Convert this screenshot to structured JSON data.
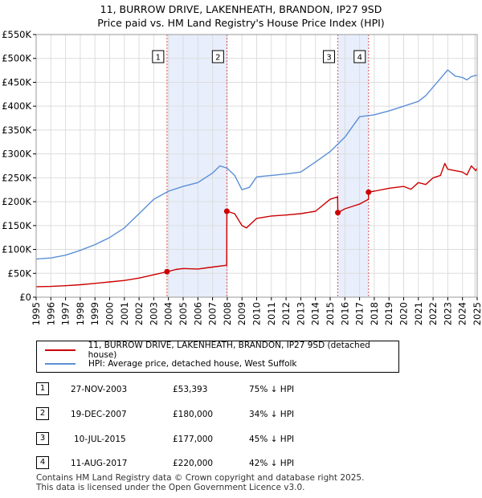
{
  "title_line1": "11, BURROW DRIVE, LAKENHEATH, BRANDON, IP27 9SD",
  "title_line2": "Price paid vs. HM Land Registry's House Price Index (HPI)",
  "legend": {
    "property_label": "11, BURROW DRIVE, LAKENHEATH, BRANDON, IP27 9SD (detached house)",
    "hpi_label": "HPI: Average price, detached house, West Suffolk"
  },
  "colors": {
    "property": "#cc0000",
    "hpi": "#5b8fd6",
    "shade": "#e8eefb",
    "grid": "#dddddd",
    "vline": "#dd5555"
  },
  "sales": [
    {
      "num": "1",
      "date": "27-NOV-2003",
      "price": "£53,393",
      "hpi": "75% ↓ HPI"
    },
    {
      "num": "2",
      "date": "19-DEC-2007",
      "price": "£180,000",
      "hpi": "34% ↓ HPI"
    },
    {
      "num": "3",
      "date": "10-JUL-2015",
      "price": "£177,000",
      "hpi": "45% ↓ HPI"
    },
    {
      "num": "4",
      "date": "11-AUG-2017",
      "price": "£220,000",
      "hpi": "42% ↓ HPI"
    }
  ],
  "footer_line1": "Contains HM Land Registry data © Crown copyright and database right 2025.",
  "footer_line2": "This data is licensed under the Open Government Licence v3.0.",
  "chart_data": {
    "type": "line",
    "title": "11, BURROW DRIVE, LAKENHEATH, BRANDON, IP27 9SD",
    "subtitle": "Price paid vs. HM Land Registry's House Price Index (HPI)",
    "xlabel": "",
    "ylabel": "",
    "xlim": [
      1995,
      2025
    ],
    "ylim": [
      0,
      550000
    ],
    "y_ticks": [
      0,
      50000,
      100000,
      150000,
      200000,
      250000,
      300000,
      350000,
      400000,
      450000,
      500000,
      550000
    ],
    "y_tick_labels": [
      "£0",
      "£50K",
      "£100K",
      "£150K",
      "£200K",
      "£250K",
      "£300K",
      "£350K",
      "£400K",
      "£450K",
      "£500K",
      "£550K"
    ],
    "x_ticks": [
      1995,
      1996,
      1997,
      1998,
      1999,
      2000,
      2001,
      2002,
      2003,
      2004,
      2005,
      2006,
      2007,
      2008,
      2009,
      2010,
      2011,
      2012,
      2013,
      2014,
      2015,
      2016,
      2017,
      2018,
      2019,
      2020,
      2021,
      2022,
      2023,
      2024,
      2025
    ],
    "x_tick_labels": [
      "1995",
      "1996",
      "1997",
      "1998",
      "1999",
      "2000",
      "2001",
      "2002",
      "2003",
      "2004",
      "2005",
      "2006",
      "2007",
      "2008",
      "2009",
      "2010",
      "2011",
      "2012",
      "2013",
      "2014",
      "2015",
      "2016",
      "2017",
      "2018",
      "2019",
      "2020",
      "2021",
      "2022",
      "2023",
      "2024",
      "2025"
    ],
    "grid": true,
    "shaded_ranges": [
      [
        2003.9,
        2007.97
      ],
      [
        2015.52,
        2017.61
      ]
    ],
    "sale_markers": [
      {
        "label": "1",
        "x": 2003.9,
        "y": 53393
      },
      {
        "label": "2",
        "x": 2007.97,
        "y": 180000
      },
      {
        "label": "3",
        "x": 2015.52,
        "y": 177000
      },
      {
        "label": "4",
        "x": 2017.61,
        "y": 220000
      }
    ],
    "series": [
      {
        "name": "11, BURROW DRIVE, LAKENHEATH, BRANDON, IP27 9SD (detached house)",
        "color": "#cc0000",
        "x": [
          1995,
          1996,
          1997,
          1998,
          1999,
          2000,
          2001,
          2002,
          2003,
          2003.9,
          2004.5,
          2005,
          2006,
          2007,
          2007.96,
          2007.97,
          2008.5,
          2009,
          2009.3,
          2010,
          2011,
          2012,
          2013,
          2014,
          2015,
          2015.51,
          2015.52,
          2016,
          2016.5,
          2017,
          2017.6,
          2017.61,
          2018,
          2019,
          2020,
          2020.5,
          2021,
          2021.5,
          2022,
          2022.5,
          2022.8,
          2023,
          2023.5,
          2024,
          2024.3,
          2024.6,
          2024.9,
          2025
        ],
        "y": [
          22000,
          22500,
          24000,
          26000,
          29000,
          32000,
          35000,
          40000,
          47000,
          53393,
          58000,
          60000,
          59000,
          63000,
          67000,
          180000,
          175000,
          150000,
          145000,
          165000,
          170000,
          172000,
          175000,
          180000,
          205000,
          210000,
          177000,
          185000,
          190000,
          195000,
          205000,
          220000,
          222000,
          228000,
          232000,
          226000,
          240000,
          236000,
          250000,
          255000,
          280000,
          268000,
          265000,
          262000,
          256000,
          275000,
          265000,
          270000
        ]
      },
      {
        "name": "HPI: Average price, detached house, West Suffolk",
        "color": "#5b8fd6",
        "x": [
          1995,
          1996,
          1997,
          1998,
          1999,
          2000,
          2001,
          2002,
          2003,
          2004,
          2005,
          2006,
          2007,
          2007.5,
          2008,
          2008.5,
          2009,
          2009.5,
          2010,
          2011,
          2012,
          2013,
          2014,
          2015,
          2016,
          2017,
          2018,
          2019,
          2020,
          2021,
          2021.5,
          2022,
          2022.5,
          2023,
          2023.5,
          2024,
          2024.3,
          2024.6,
          2025
        ],
        "y": [
          80000,
          82000,
          88000,
          98000,
          110000,
          125000,
          145000,
          175000,
          205000,
          222000,
          232000,
          240000,
          260000,
          275000,
          270000,
          255000,
          225000,
          230000,
          252000,
          255000,
          258000,
          262000,
          283000,
          305000,
          335000,
          378000,
          382000,
          390000,
          400000,
          410000,
          422000,
          440000,
          458000,
          476000,
          463000,
          460000,
          455000,
          462000,
          465000
        ]
      }
    ]
  }
}
